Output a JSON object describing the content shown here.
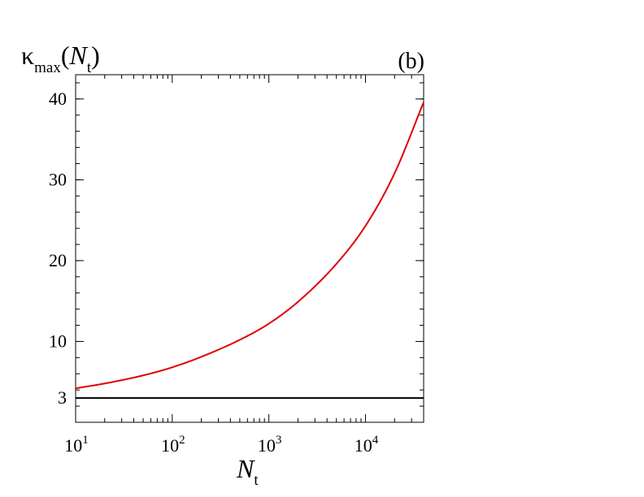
{
  "chart_data": {
    "type": "line",
    "panel_label": "(b)",
    "ylabel": {
      "symbol": "κ",
      "subscript": "max",
      "open": "(",
      "var": "N",
      "var_sub": "t",
      "close": ")"
    },
    "xlabel": {
      "var": "N",
      "var_sub": "t"
    },
    "xscale": "log",
    "xlim": [
      10,
      40000
    ],
    "ylim": [
      0,
      43
    ],
    "x_ticks": [
      {
        "value": 10,
        "base": "10",
        "exp": "1"
      },
      {
        "value": 100,
        "base": "10",
        "exp": "2"
      },
      {
        "value": 1000,
        "base": "10",
        "exp": "3"
      },
      {
        "value": 10000,
        "base": "10",
        "exp": "4"
      }
    ],
    "y_ticks": [
      {
        "value": 3,
        "label": "3"
      },
      {
        "value": 10,
        "label": "10"
      },
      {
        "value": 20,
        "label": "20"
      },
      {
        "value": 30,
        "label": "30"
      },
      {
        "value": 40,
        "label": "40"
      }
    ],
    "y_minor_step": 2,
    "grid": false,
    "series": [
      {
        "color": "#e00000",
        "x": [
          10,
          20,
          50,
          100,
          200,
          500,
          1000,
          2000,
          5000,
          10000,
          20000,
          40000
        ],
        "y": [
          4.2,
          4.8,
          5.8,
          6.8,
          8.1,
          10.2,
          12.2,
          14.9,
          19.6,
          24.3,
          30.8,
          39.6
        ]
      },
      {
        "color": "#000000",
        "x": [
          10,
          40000
        ],
        "y": [
          3,
          3
        ]
      }
    ]
  }
}
